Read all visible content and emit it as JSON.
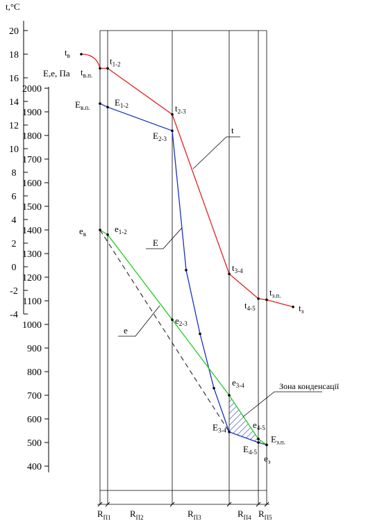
{
  "chart_data": {
    "type": "line",
    "t_axis": {
      "label": "t,°C",
      "ticks": [
        "20",
        "18",
        "16",
        "14",
        "12",
        "10",
        "8",
        "6",
        "4",
        "2",
        "0",
        "-2",
        "-4"
      ],
      "values": [
        20,
        18,
        16,
        14,
        12,
        10,
        8,
        6,
        4,
        2,
        0,
        -2,
        -4
      ]
    },
    "e_axis": {
      "label": "E,e, Па",
      "ticks": [
        "2000",
        "1900",
        "1800",
        "1700",
        "1600",
        "1500",
        "1400",
        "1300",
        "1200",
        "1100",
        "1000",
        "900",
        "800",
        "700",
        "600",
        "500",
        "400"
      ],
      "values": [
        2000,
        1900,
        1800,
        1700,
        1600,
        1500,
        1400,
        1300,
        1200,
        1100,
        1000,
        900,
        800,
        700,
        600,
        500,
        400
      ]
    },
    "layers": [
      "П1",
      "П2",
      "П3",
      "П4",
      "П5"
    ],
    "series": [
      {
        "name": "t",
        "color": "#e02020",
        "points": [
          {
            "label": "t в",
            "t": 18.0,
            "pos": "inner-start"
          },
          {
            "label": "t в.п.",
            "t": 16.8,
            "pos": "surface-in"
          },
          {
            "label": "t 1-2",
            "t": 16.8,
            "pos": "b1"
          },
          {
            "label": "t 2-3",
            "t": 12.9,
            "pos": "b2"
          },
          {
            "label": "t 3-4",
            "t": -0.6,
            "pos": "b3"
          },
          {
            "label": "t 4-5",
            "t": -2.7,
            "pos": "b4"
          },
          {
            "label": "t з.п.",
            "t": -2.8,
            "pos": "surface-out"
          },
          {
            "label": "t з",
            "t": -3.4,
            "pos": "outer-end"
          }
        ]
      },
      {
        "name": "E",
        "color": "#1a2fbf",
        "points": [
          {
            "label": "E в.п.",
            "e": 1935,
            "pos": "surface-in"
          },
          {
            "label": "E 1-2",
            "e": 1920,
            "pos": "b1"
          },
          {
            "label": "E 2-3",
            "e": 1820,
            "pos": "b2"
          },
          {
            "label": "",
            "e": 1230,
            "pos": "p3a"
          },
          {
            "label": "",
            "e": 960,
            "pos": "p3b"
          },
          {
            "label": "",
            "e": 730,
            "pos": "p3c"
          },
          {
            "label": "E 3-4",
            "e": 545,
            "pos": "b3"
          },
          {
            "label": "E 4-5",
            "e": 500,
            "pos": "b4"
          },
          {
            "label": "E з.п.",
            "e": 490,
            "pos": "surface-out"
          }
        ]
      },
      {
        "name": "e",
        "color": "#22cc22",
        "points": [
          {
            "label": "e в",
            "e": 1400,
            "pos": "surface-in"
          },
          {
            "label": "e 1-2",
            "e": 1380,
            "pos": "b1"
          },
          {
            "label": "e 2-3",
            "e": 1020,
            "pos": "b2"
          },
          {
            "label": "e 3-4",
            "e": 700,
            "pos": "b3"
          },
          {
            "label": "e 4-5",
            "e": 515,
            "pos": "b4"
          },
          {
            "label": "e з",
            "e": 490,
            "pos": "surface-out"
          }
        ]
      }
    ],
    "curve_labels": [
      "t",
      "E",
      "e"
    ],
    "annotation": "Зона конденсації",
    "resistance_labels": [
      "R",
      "R",
      "R",
      "R",
      "R"
    ],
    "resistance_subs": [
      "П1",
      "П2",
      "П3",
      "П4",
      "П5"
    ]
  }
}
